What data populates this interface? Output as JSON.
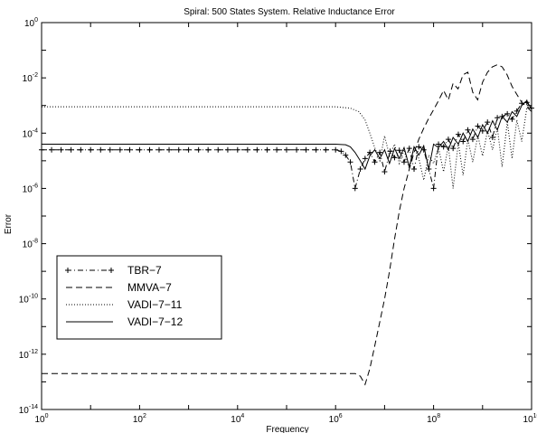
{
  "chart_data": {
    "type": "line",
    "title": "Spiral: 500 States System.  Relative Inductance Error",
    "xlabel": "Frequency",
    "ylabel": "Error",
    "xscale": "log",
    "yscale": "log",
    "xlim": [
      1,
      10000000000
    ],
    "ylim": [
      1e-14,
      1
    ],
    "xticks": [
      {
        "base": "10",
        "exp": "0",
        "value": 1
      },
      {
        "base": "10",
        "exp": "2",
        "value": 100
      },
      {
        "base": "10",
        "exp": "4",
        "value": 10000
      },
      {
        "base": "10",
        "exp": "6",
        "value": 1000000
      },
      {
        "base": "10",
        "exp": "8",
        "value": 100000000
      },
      {
        "base": "10",
        "exp": "10",
        "value": 10000000000
      }
    ],
    "yticks": [
      {
        "base": "10",
        "exp": "0",
        "value": 1
      },
      {
        "base": "10",
        "exp": "-2",
        "value": 0.01
      },
      {
        "base": "10",
        "exp": "-4",
        "value": 0.0001
      },
      {
        "base": "10",
        "exp": "-6",
        "value": 1e-06
      },
      {
        "base": "10",
        "exp": "-8",
        "value": 1e-08
      },
      {
        "base": "10",
        "exp": "-10",
        "value": 1e-10
      },
      {
        "base": "10",
        "exp": "-12",
        "value": 1e-12
      },
      {
        "base": "10",
        "exp": "-14",
        "value": 1e-14
      }
    ],
    "grid": false,
    "legend_position": "lower-left",
    "series": [
      {
        "name": "TBR−7",
        "style": "dashdot-plus",
        "color": "#000000",
        "x": [
          1,
          1.6,
          2.5,
          4,
          6.3,
          10,
          16,
          25,
          40,
          63,
          100,
          160,
          250,
          400,
          630,
          1000,
          1600,
          2500,
          4000,
          6300,
          10000,
          16000,
          25000,
          40000,
          63000,
          100000,
          160000,
          250000,
          400000,
          630000,
          1000000,
          1300000,
          1600000,
          2000000,
          2500000,
          3200000,
          4000000,
          5000000,
          6300000,
          8000000,
          10000000,
          13000000,
          16000000,
          20000000,
          25000000,
          32000000,
          40000000,
          50000000,
          63000000,
          80000000,
          100000000,
          126000000,
          160000000,
          200000000,
          250000000,
          320000000,
          400000000,
          500000000,
          630000000,
          800000000,
          1000000000,
          1260000000,
          1600000000,
          2000000000,
          2500000000,
          3200000000,
          4000000000,
          5000000000,
          6300000000,
          8000000000,
          10000000000
        ],
        "y": [
          2.5e-05,
          2.5e-05,
          2.5e-05,
          2.5e-05,
          2.5e-05,
          2.5e-05,
          2.5e-05,
          2.5e-05,
          2.5e-05,
          2.5e-05,
          2.5e-05,
          2.5e-05,
          2.5e-05,
          2.5e-05,
          2.5e-05,
          2.5e-05,
          2.5e-05,
          2.5e-05,
          2.5e-05,
          2.5e-05,
          2.5e-05,
          2.5e-05,
          2.5e-05,
          2.5e-05,
          2.5e-05,
          2.5e-05,
          2.5e-05,
          2.5e-05,
          2.5e-05,
          2.5e-05,
          2.5e-05,
          2.2e-05,
          1.6e-05,
          9e-06,
          1e-06,
          5e-06,
          1.2e-05,
          2e-05,
          9e-06,
          2e-05,
          4e-06,
          2.2e-05,
          1.3e-05,
          2.4e-05,
          9e-06,
          2.8e-05,
          5e-06,
          3.2e-05,
          2.5e-05,
          5e-06,
          1e-06,
          4e-05,
          3.2e-05,
          6e-05,
          2.8e-05,
          9e-05,
          5e-05,
          0.00013,
          6e-05,
          0.00018,
          0.00012,
          0.00025,
          7e-05,
          0.00036,
          0.0004,
          0.0005,
          0.00032,
          0.00063,
          0.0012,
          0.0013,
          0.0008
        ]
      },
      {
        "name": "MMVA−7",
        "style": "dashed",
        "color": "#000000",
        "x": [
          1,
          10,
          100,
          1000,
          10000,
          100000,
          1000000,
          2500000,
          3200000,
          4000000,
          5000000,
          6300000,
          8000000,
          10000000,
          12600000,
          16000000,
          20000000,
          25000000,
          32000000,
          40000000,
          50000000,
          63000000,
          80000000,
          100000000,
          126000000,
          160000000,
          200000000,
          250000000,
          316000000,
          400000000,
          500000000,
          630000000,
          794000000,
          1000000000,
          1260000000,
          1580000000,
          2000000000,
          2510000000,
          3160000000,
          3980000000,
          5010000000,
          6310000000,
          7940000000,
          10000000000
        ],
        "y": [
          2e-13,
          2e-13,
          2e-13,
          2e-13,
          2e-13,
          2e-13,
          2e-13,
          2e-13,
          1.6e-13,
          8e-14,
          3e-13,
          2e-12,
          1.5e-11,
          1e-10,
          1e-09,
          1.5e-08,
          1.5e-07,
          1e-06,
          5e-06,
          2e-05,
          6e-05,
          0.00015,
          0.00035,
          0.0007,
          0.0015,
          0.0035,
          0.0016,
          0.0063,
          0.004,
          0.013,
          0.016,
          0.003,
          0.0016,
          0.007,
          0.016,
          0.025,
          0.03,
          0.025,
          0.013,
          0.005,
          0.0025,
          0.0013,
          0.0009,
          0.0006
        ]
      },
      {
        "name": "VADI−7−11",
        "style": "dotted",
        "color": "#000000",
        "x": [
          1,
          10,
          100,
          1000,
          10000,
          100000,
          1000000,
          2000000,
          3000000,
          4000000,
          5000000,
          6300000,
          8000000,
          10000000,
          12600000,
          16000000,
          20000000,
          25000000,
          32000000,
          40000000,
          50000000,
          63000000,
          80000000,
          100000000,
          126000000,
          160000000,
          200000000,
          250000000,
          320000000,
          400000000,
          500000000,
          630000000,
          800000000,
          1000000000,
          1260000000,
          1600000000,
          2000000000,
          2500000000,
          3200000000,
          4000000000,
          5000000000,
          6300000000,
          8000000000,
          10000000000
        ],
        "y": [
          0.0009,
          0.0009,
          0.0009,
          0.0009,
          0.0009,
          0.0009,
          0.0009,
          0.0008,
          0.0006,
          0.0003,
          0.0001,
          3e-05,
          1e-05,
          8e-05,
          1.5e-05,
          4e-05,
          8e-06,
          2.5e-05,
          5e-06,
          3e-05,
          1.2e-05,
          2e-06,
          1.6e-05,
          8e-06,
          3e-05,
          4e-06,
          3.5e-05,
          1e-06,
          4.5e-05,
          3e-06,
          6e-05,
          9e-06,
          8e-05,
          1.5e-05,
          0.00012,
          2.5e-05,
          0.00016,
          6e-06,
          0.00025,
          1.2e-05,
          0.0003,
          5e-05,
          0.0008,
          0.001
        ]
      },
      {
        "name": "VADI−7−12",
        "style": "solid",
        "color": "#000000",
        "x": [
          1,
          10,
          100,
          1000,
          10000,
          100000,
          1000000,
          1600000,
          2000000,
          2500000,
          3200000,
          4000000,
          5000000,
          6300000,
          8000000,
          10000000,
          12600000,
          16000000,
          20000000,
          25000000,
          32000000,
          40000000,
          50000000,
          63000000,
          80000000,
          100000000,
          126000000,
          160000000,
          200000000,
          250000000,
          320000000,
          400000000,
          500000000,
          630000000,
          800000000,
          1000000000,
          1260000000,
          1600000000,
          2000000000,
          2500000000,
          3200000000,
          4000000000,
          5000000000,
          6300000000,
          8000000000,
          10000000000
        ],
        "y": [
          4e-05,
          4e-05,
          4e-05,
          4e-05,
          4e-05,
          4e-05,
          4e-05,
          3.8e-05,
          3.2e-05,
          2e-05,
          1e-05,
          5e-06,
          1.5e-05,
          2.5e-05,
          1.2e-05,
          2.5e-05,
          8e-06,
          2.8e-05,
          1.2e-05,
          3e-05,
          6e-06,
          3.2e-05,
          1.6e-05,
          3.5e-05,
          5e-06,
          4e-05,
          3e-05,
          5e-05,
          2.5e-05,
          7e-05,
          4e-05,
          0.0001,
          5e-05,
          0.00014,
          7e-05,
          0.0002,
          0.0001,
          0.00028,
          0.00013,
          0.0004,
          0.00025,
          0.0006,
          0.0004,
          0.001,
          0.0015,
          0.0007
        ]
      }
    ]
  }
}
